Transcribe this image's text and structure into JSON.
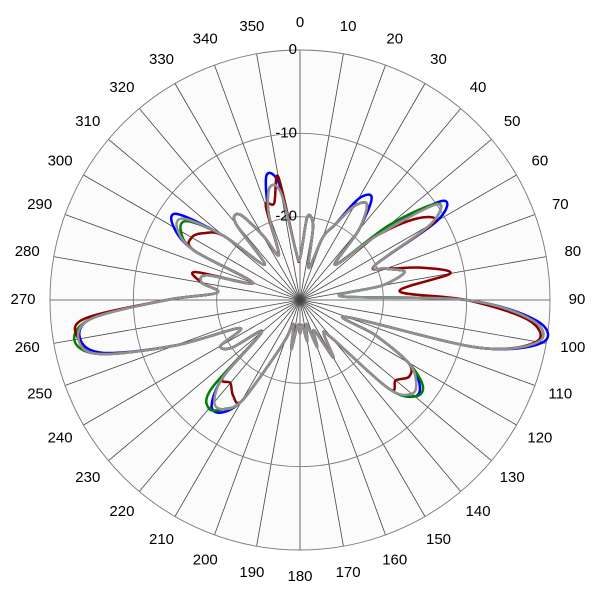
{
  "chart_data": {
    "type": "polar",
    "theta": [
      0,
      5,
      10,
      15,
      20,
      25,
      30,
      35,
      40,
      45,
      50,
      55,
      60,
      65,
      70,
      75,
      80,
      85,
      90,
      95,
      100,
      105,
      110,
      115,
      120,
      125,
      130,
      135,
      140,
      145,
      150,
      155,
      160,
      165,
      170,
      175,
      180,
      185,
      190,
      195,
      200,
      205,
      210,
      215,
      220,
      225,
      230,
      235,
      240,
      245,
      250,
      255,
      260,
      265,
      270,
      275,
      280,
      285,
      290,
      295,
      300,
      305,
      310,
      315,
      320,
      325,
      330,
      335,
      340,
      345,
      350,
      355
    ],
    "angle_ticks": [
      0,
      10,
      20,
      30,
      40,
      50,
      60,
      70,
      80,
      90,
      100,
      110,
      120,
      130,
      140,
      150,
      160,
      170,
      180,
      190,
      200,
      210,
      220,
      230,
      240,
      250,
      260,
      270,
      280,
      290,
      300,
      310,
      320,
      330,
      340,
      350
    ],
    "rlim": [
      -30,
      0
    ],
    "rticks": [
      -20,
      -10,
      0
    ],
    "grid": true,
    "series": [
      {
        "color": "#0000ff",
        "values": [
          -25,
          -20,
          -21,
          -26,
          -22,
          -20,
          -16,
          -15,
          -19,
          -24,
          -18,
          -9.3,
          -11,
          -20,
          -19,
          -17,
          -20,
          -25,
          -10,
          -1.5,
          -0.5,
          -8,
          -24,
          -20,
          -15,
          -12.5,
          -12,
          -15,
          -24,
          -25,
          -22,
          -26,
          -24,
          -27,
          -25,
          -27,
          -26,
          -27,
          -24,
          -27,
          -25,
          -22,
          -16,
          -13.5,
          -13.5,
          -17,
          -24,
          -20,
          -19,
          -22,
          -14,
          -5.5,
          -3.2,
          -5,
          -14,
          -20,
          -18,
          -18.5,
          -24,
          -16,
          -12.5,
          -12,
          -18,
          -24,
          -18,
          -17.5,
          -21,
          -24,
          -19,
          -14.5,
          -16,
          -24
        ]
      },
      {
        "color": "#008000",
        "values": [
          -25,
          -20,
          -21,
          -26,
          -22,
          -20,
          -17,
          -16,
          -19,
          -24,
          -16,
          -9.8,
          -12,
          -20,
          -19,
          -17,
          -20,
          -25,
          -10,
          -2,
          -1,
          -8,
          -24,
          -20,
          -15,
          -12,
          -12,
          -15,
          -24,
          -25,
          -22,
          -26,
          -24,
          -27,
          -25,
          -27,
          -26,
          -27,
          -24,
          -27,
          -25,
          -22,
          -16,
          -14,
          -13,
          -15,
          -24,
          -20,
          -19,
          -22,
          -14,
          -5,
          -2.5,
          -5,
          -14,
          -20,
          -18,
          -18.5,
          -24,
          -16,
          -13.5,
          -13.5,
          -18,
          -24,
          -18,
          -17.5,
          -21,
          -24,
          -19,
          -16,
          -17,
          -24
        ]
      },
      {
        "color": "#8b0000",
        "values": [
          -25,
          -20,
          -21,
          -26,
          -22,
          -20,
          -17,
          -16,
          -19,
          -24,
          -18,
          -13,
          -11.5,
          -20,
          -19,
          -15,
          -11.7,
          -18,
          -10,
          -2.5,
          -1.2,
          -8,
          -24,
          -20,
          -15,
          -14,
          -15,
          -15,
          -24,
          -25,
          -22,
          -26,
          -24,
          -27,
          -25,
          -27,
          -26,
          -27,
          -24,
          -27,
          -25,
          -22,
          -16,
          -16,
          -17,
          -17,
          -24,
          -20,
          -19,
          -22,
          -14,
          -5,
          -3,
          -4,
          -14,
          -20,
          -18,
          -17,
          -24,
          -16,
          -15,
          -16,
          -18,
          -24,
          -18,
          -17.5,
          -21,
          -24,
          -18,
          -18,
          -15,
          -24
        ]
      },
      {
        "color": "#909090",
        "values": [
          -25,
          -20,
          -21,
          -26,
          -22,
          -20,
          -17,
          -16,
          -19,
          -24,
          -18,
          -10,
          -12,
          -20,
          -19,
          -17,
          -20,
          -25,
          -10,
          -2,
          -1,
          -8,
          -24,
          -20,
          -15,
          -13,
          -12.5,
          -15,
          -24,
          -25,
          -22,
          -26,
          -24,
          -27,
          -25,
          -27,
          -26,
          -27,
          -24,
          -27,
          -25,
          -22,
          -16,
          -14,
          -14,
          -17,
          -24,
          -20,
          -19,
          -22,
          -14,
          -5,
          -3,
          -5,
          -14,
          -20,
          -18,
          -18.5,
          -24,
          -16,
          -13,
          -13,
          -18,
          -24,
          -18,
          -17.5,
          -21,
          -24,
          -19,
          -16,
          -17,
          -24
        ]
      }
    ]
  }
}
